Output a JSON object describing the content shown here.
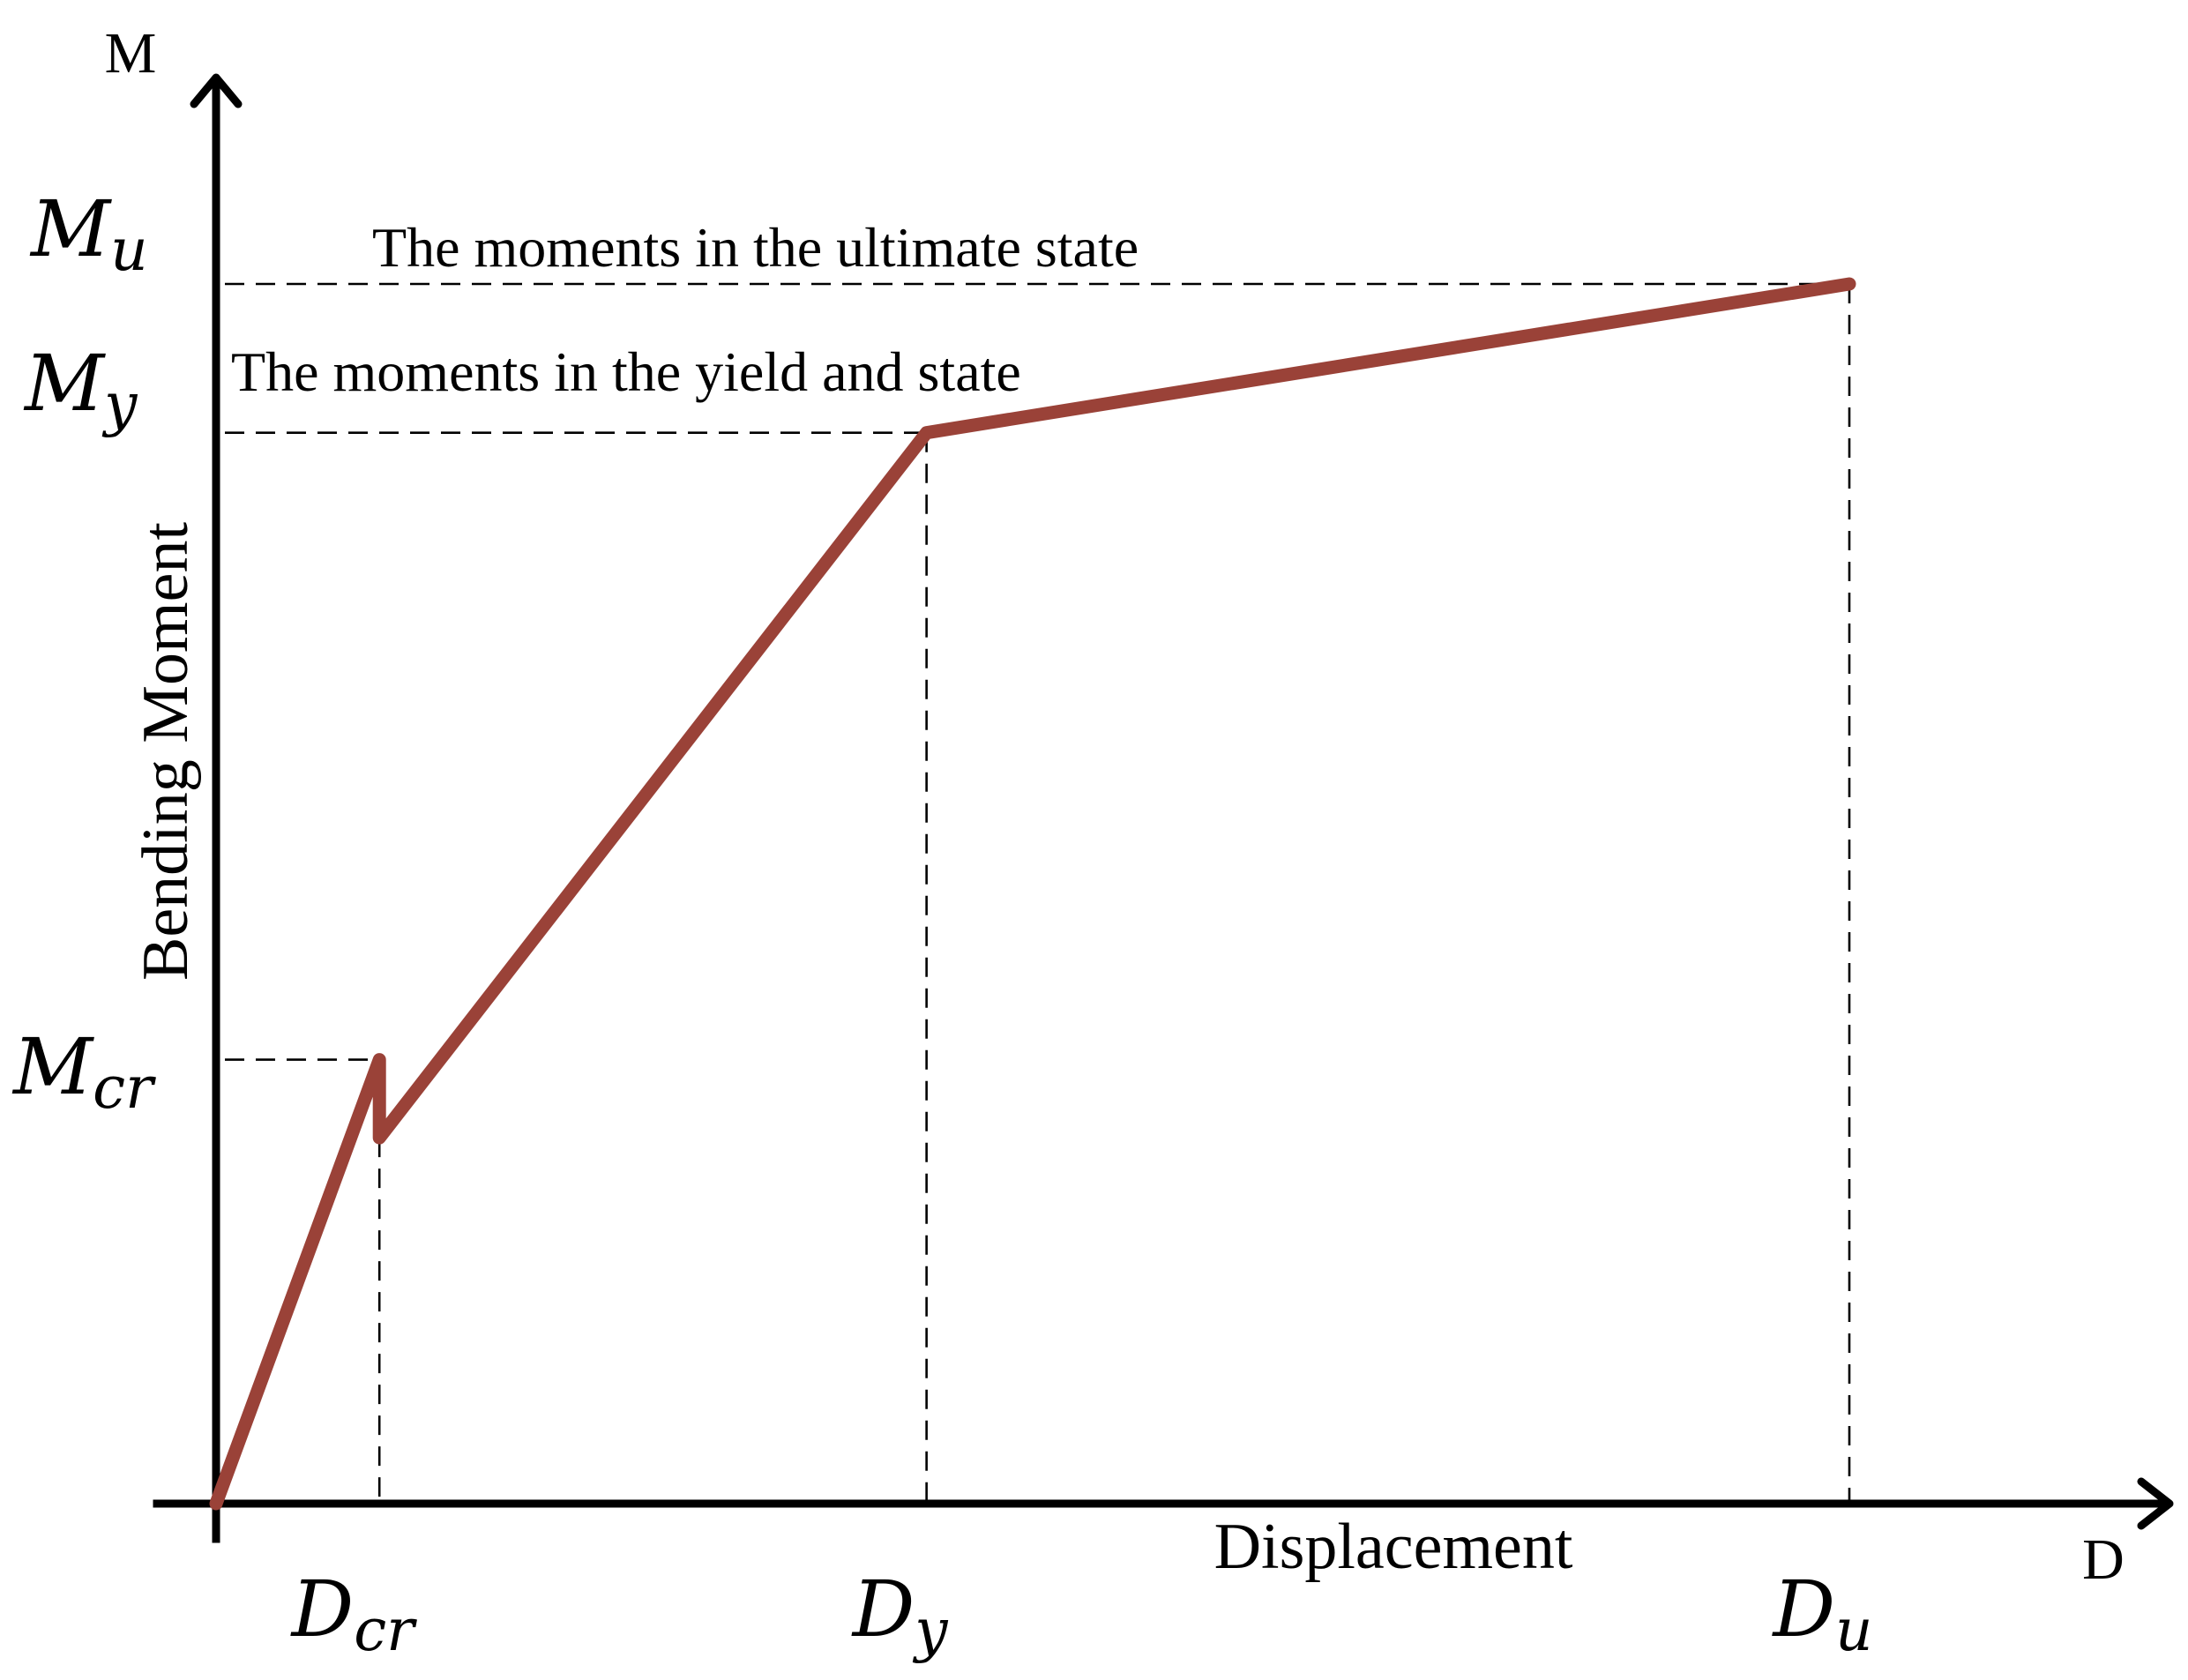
{
  "chart_data": {
    "type": "line",
    "xlabel": "Displacement",
    "ylabel": "Bending Moment",
    "x_axis_symbol": "D",
    "y_axis_symbol": "M",
    "x_ticks": [
      {
        "key": "Dcr",
        "main": "D",
        "sub": "cr"
      },
      {
        "key": "Dy",
        "main": "D",
        "sub": "y"
      },
      {
        "key": "Du",
        "main": "D",
        "sub": "u"
      }
    ],
    "y_ticks": [
      {
        "key": "Mcr",
        "main": "M",
        "sub": "cr"
      },
      {
        "key": "My",
        "main": "M",
        "sub": "y"
      },
      {
        "key": "Mu",
        "main": "M",
        "sub": "u"
      }
    ],
    "annotations": {
      "ultimate": "The moments  in the ultimate state",
      "yield": "The moments  in the yield and  state"
    },
    "xlim": [
      0,
      1.21
    ],
    "ylim": [
      0,
      1.16
    ],
    "reference_values": {
      "Dcr": 0.1,
      "Dy": 0.435,
      "Du": 1.0,
      "Mcr": 0.364,
      "My": 0.878,
      "Mu": 1.0
    },
    "series": [
      {
        "color": "#9a4238",
        "x": [
          0,
          0.1,
          0.1,
          0.435,
          1.0
        ],
        "y": [
          0,
          0.364,
          0.3,
          0.878,
          1.0
        ]
      }
    ],
    "grid": false,
    "legend": "none"
  }
}
